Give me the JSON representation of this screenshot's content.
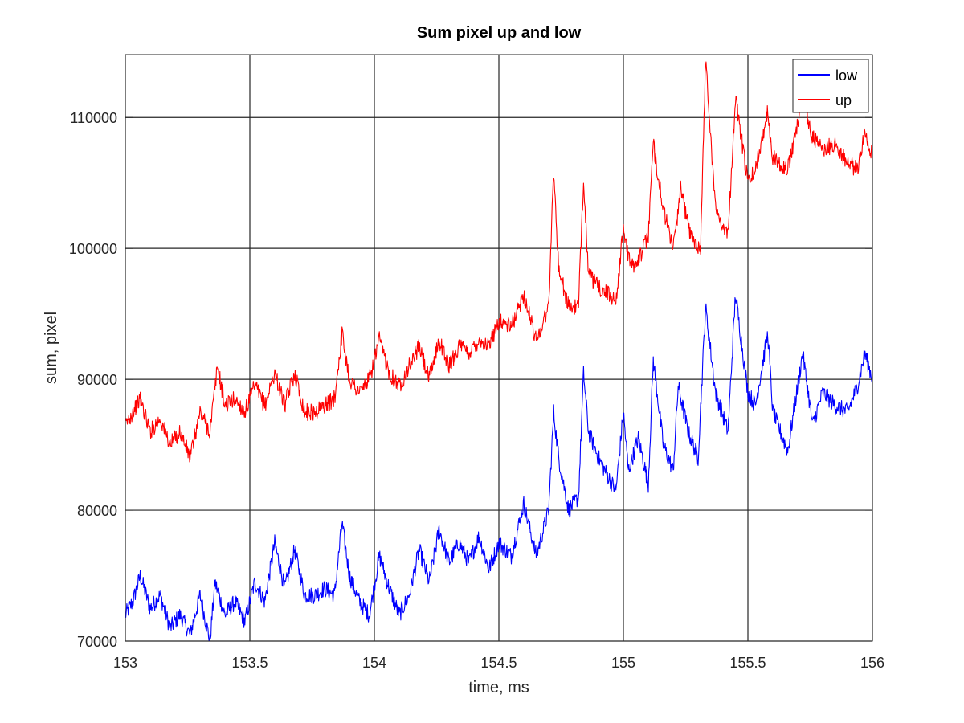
{
  "chart_data": {
    "type": "line",
    "title": "Sum pixel up and low",
    "xlabel": "time, ms",
    "ylabel": "sum, pixel",
    "xlim": [
      153,
      156
    ],
    "ylim": [
      70000,
      114800
    ],
    "xticks": [
      153,
      153.5,
      154,
      154.5,
      155,
      155.5,
      156
    ],
    "xtick_labels": [
      "153",
      "153.5",
      "154",
      "154.5",
      "155",
      "155.5",
      "156"
    ],
    "yticks": [
      70000,
      80000,
      90000,
      100000,
      110000
    ],
    "ytick_labels": [
      "70000",
      "80000",
      "90000",
      "100000",
      "110000"
    ],
    "grid": true,
    "legend_position": "top-right",
    "series": [
      {
        "name": "low",
        "color": "#0000ff",
        "x": [
          153,
          153.03,
          153.06,
          153.1,
          153.14,
          153.18,
          153.22,
          153.26,
          153.3,
          153.34,
          153.36,
          153.4,
          153.44,
          153.48,
          153.52,
          153.56,
          153.6,
          153.64,
          153.68,
          153.72,
          153.76,
          153.8,
          153.84,
          153.87,
          153.9,
          153.94,
          153.98,
          154.02,
          154.06,
          154.1,
          154.14,
          154.18,
          154.22,
          154.26,
          154.3,
          154.34,
          154.38,
          154.42,
          154.46,
          154.5,
          154.55,
          154.6,
          154.65,
          154.7,
          154.72,
          154.74,
          154.78,
          154.82,
          154.84,
          154.86,
          154.9,
          154.94,
          154.97,
          155.0,
          155.02,
          155.06,
          155.1,
          155.12,
          155.16,
          155.2,
          155.22,
          155.26,
          155.3,
          155.33,
          155.37,
          155.42,
          155.45,
          155.5,
          155.53,
          155.58,
          155.6,
          155.66,
          155.72,
          155.76,
          155.8,
          155.85,
          155.9,
          155.94,
          155.97,
          156.0
        ],
        "values": [
          72000,
          73000,
          75000,
          72500,
          73500,
          71000,
          72000,
          70500,
          73500,
          70000,
          74500,
          72000,
          73000,
          71500,
          74500,
          73000,
          77500,
          74000,
          77000,
          73500,
          73500,
          74000,
          73500,
          79000,
          75000,
          73000,
          72000,
          76500,
          74000,
          72000,
          73500,
          77000,
          74500,
          78500,
          76000,
          77500,
          76000,
          78000,
          75500,
          77500,
          76500,
          80500,
          76500,
          80000,
          87500,
          84000,
          80000,
          81000,
          90500,
          86000,
          84000,
          82500,
          81500,
          87500,
          83000,
          85500,
          82000,
          91500,
          85000,
          83000,
          89500,
          86000,
          84000,
          95500,
          89000,
          86000,
          96500,
          89000,
          88000,
          93500,
          87500,
          84500,
          92000,
          86500,
          89000,
          88000,
          87500,
          89500,
          92000,
          90000
        ]
      },
      {
        "name": "up",
        "color": "#ff0000",
        "x": [
          153,
          153.03,
          153.06,
          153.1,
          153.14,
          153.18,
          153.22,
          153.26,
          153.3,
          153.34,
          153.37,
          153.4,
          153.44,
          153.48,
          153.52,
          153.56,
          153.6,
          153.64,
          153.68,
          153.72,
          153.76,
          153.8,
          153.84,
          153.87,
          153.9,
          153.94,
          153.98,
          154.02,
          154.06,
          154.1,
          154.14,
          154.18,
          154.22,
          154.26,
          154.3,
          154.34,
          154.38,
          154.42,
          154.46,
          154.5,
          154.55,
          154.6,
          154.65,
          154.7,
          154.72,
          154.74,
          154.78,
          154.82,
          154.84,
          154.86,
          154.9,
          154.94,
          154.97,
          155.0,
          155.03,
          155.07,
          155.1,
          155.12,
          155.16,
          155.2,
          155.23,
          155.27,
          155.31,
          155.33,
          155.37,
          155.42,
          155.45,
          155.5,
          155.53,
          155.58,
          155.6,
          155.66,
          155.72,
          155.76,
          155.8,
          155.85,
          155.9,
          155.94,
          155.97,
          156.0
        ],
        "values": [
          86500,
          87500,
          88500,
          86000,
          87000,
          85000,
          86000,
          84000,
          87500,
          86000,
          91000,
          88000,
          88500,
          87500,
          89500,
          88000,
          90500,
          88000,
          90500,
          87500,
          87500,
          88000,
          88500,
          93500,
          90000,
          89000,
          90000,
          93000,
          90500,
          89500,
          91000,
          92500,
          90000,
          93000,
          91000,
          92500,
          92000,
          93000,
          92500,
          94500,
          94000,
          96500,
          93000,
          95500,
          106000,
          98500,
          95500,
          95500,
          105500,
          98000,
          97000,
          96500,
          96000,
          101500,
          98500,
          99500,
          101000,
          108000,
          103000,
          100000,
          104500,
          101000,
          100000,
          114500,
          103000,
          101000,
          111500,
          105000,
          106000,
          110500,
          107000,
          106000,
          111500,
          108500,
          107500,
          108000,
          106500,
          106000,
          109000,
          107000
        ]
      }
    ]
  }
}
